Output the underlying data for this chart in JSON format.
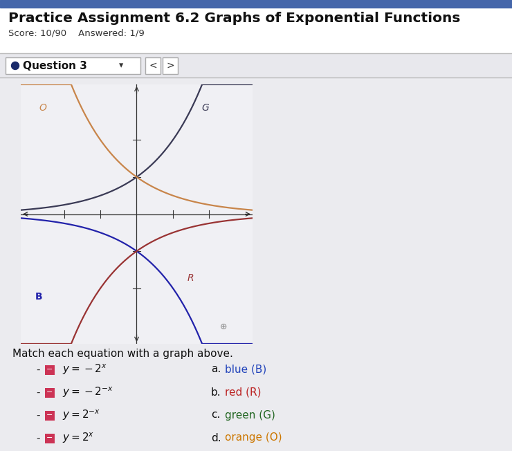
{
  "title": "Practice Assignment 6.2 Graphs of Exponential Functions",
  "subtitle": "Score: 10/90    Answered: 1/9",
  "question_label": "Question 3",
  "graph_xlim": [
    -3.2,
    3.2
  ],
  "graph_ylim": [
    -3.5,
    3.5
  ],
  "curves": [
    {
      "label": "G",
      "color": "#3a3a55",
      "func": "2**x",
      "lw": 1.6
    },
    {
      "label": "O",
      "color": "#c8854a",
      "func": "2**(-x)",
      "lw": 1.6
    },
    {
      "label": "B",
      "color": "#2222aa",
      "func": "-2**x",
      "lw": 1.6
    },
    {
      "label": "R",
      "color": "#993333",
      "func": "-2**(-x)",
      "lw": 1.6
    }
  ],
  "match_text": "Match each equation with a graph above.",
  "equations": [
    "$y=-2^{x}$",
    "$y=-2^{-x}$",
    "$y=2^{-x}$",
    "$y=2^{x}$"
  ],
  "answer_labels": [
    "a. blue (B)",
    "b. red (R)",
    "c. green (G)",
    "d. orange (O)"
  ],
  "answer_colors": [
    "#2244bb",
    "#bb2222",
    "#226622",
    "#cc7700"
  ],
  "answer_plain": [
    "a.",
    "b.",
    "c.",
    "d."
  ],
  "answer_colored": [
    "blue (B)",
    "red (R)",
    "green (G)",
    "orange (O)"
  ],
  "icon_color": "#cc3355",
  "page_bg": "#d8d8dc",
  "header_bg": "#ffffff",
  "qbar_bg": "#e8e8ed",
  "graph_bg": "#f0f0f4",
  "top_bar_color": "#4466aa",
  "separator_color": "#bbbbbb"
}
